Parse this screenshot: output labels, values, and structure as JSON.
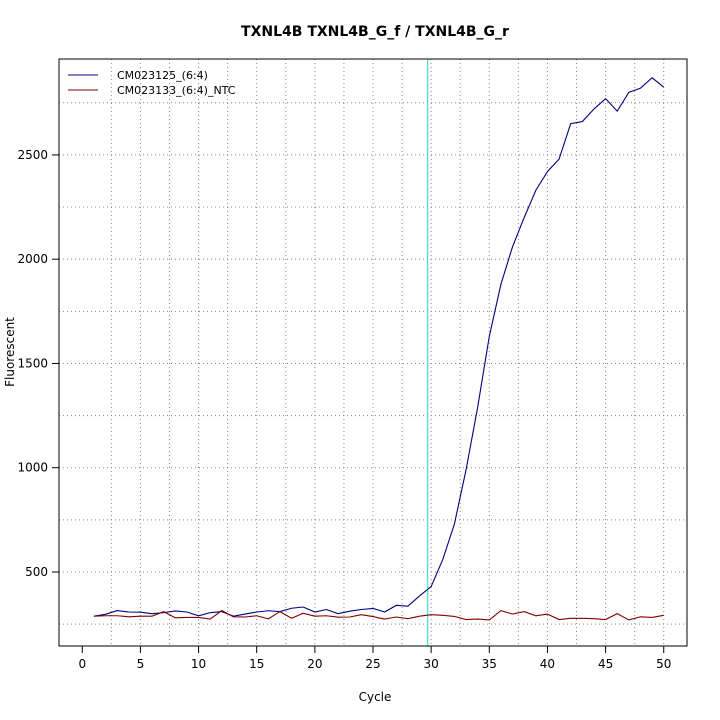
{
  "chart_data": {
    "type": "line",
    "title": "TXNL4B  TXNL4B_G_f / TXNL4B_G_r",
    "xlabel": "Cycle",
    "ylabel": "Fluorescent",
    "xlim": [
      0,
      50
    ],
    "ylim": [
      250,
      2900
    ],
    "xticks": [
      0,
      5,
      10,
      15,
      20,
      25,
      30,
      35,
      40,
      45,
      50
    ],
    "yticks": [
      500,
      1000,
      1500,
      2000,
      2500
    ],
    "grid": true,
    "legend_position": "top-left",
    "threshold_cycle": 29.7,
    "threshold_color": "#40e0d0",
    "series": [
      {
        "name": "CM023125_(6:4)",
        "color": "#00007f",
        "x": [
          1,
          2,
          3,
          4,
          5,
          6,
          7,
          8,
          9,
          10,
          11,
          12,
          13,
          14,
          15,
          16,
          17,
          18,
          19,
          20,
          21,
          22,
          23,
          24,
          25,
          26,
          27,
          28,
          29,
          30,
          31,
          32,
          33,
          34,
          35,
          36,
          37,
          38,
          39,
          40,
          41,
          42,
          43,
          44,
          45,
          46,
          47,
          48,
          49,
          50
        ],
        "values": [
          288,
          297,
          315,
          308,
          307,
          300,
          305,
          313,
          308,
          290,
          305,
          310,
          288,
          298,
          308,
          314,
          310,
          326,
          332,
          308,
          320,
          300,
          312,
          320,
          325,
          308,
          340,
          336,
          385,
          430,
          560,
          730,
          990,
          1290,
          1630,
          1880,
          2060,
          2200,
          2330,
          2420,
          2480,
          2650,
          2660,
          2720,
          2770,
          2710,
          2800,
          2820,
          2870,
          2825
        ]
      },
      {
        "name": "CM023133_(6:4)_NTC",
        "color": "#7f0000",
        "x": [
          1,
          2,
          3,
          4,
          5,
          6,
          7,
          8,
          9,
          10,
          11,
          12,
          13,
          14,
          15,
          16,
          17,
          18,
          19,
          20,
          21,
          22,
          23,
          24,
          25,
          26,
          27,
          28,
          29,
          30,
          31,
          32,
          33,
          34,
          35,
          36,
          37,
          38,
          39,
          40,
          41,
          42,
          43,
          44,
          45,
          46,
          47,
          48,
          49,
          50
        ],
        "values": [
          288,
          290,
          290,
          285,
          288,
          288,
          310,
          280,
          282,
          282,
          274,
          315,
          285,
          284,
          290,
          275,
          310,
          278,
          302,
          288,
          290,
          283,
          284,
          295,
          286,
          274,
          284,
          276,
          288,
          295,
          292,
          287,
          272,
          274,
          270,
          315,
          298,
          310,
          290,
          298,
          272,
          278,
          278,
          276,
          272,
          300,
          270,
          285,
          282,
          292
        ]
      }
    ]
  }
}
